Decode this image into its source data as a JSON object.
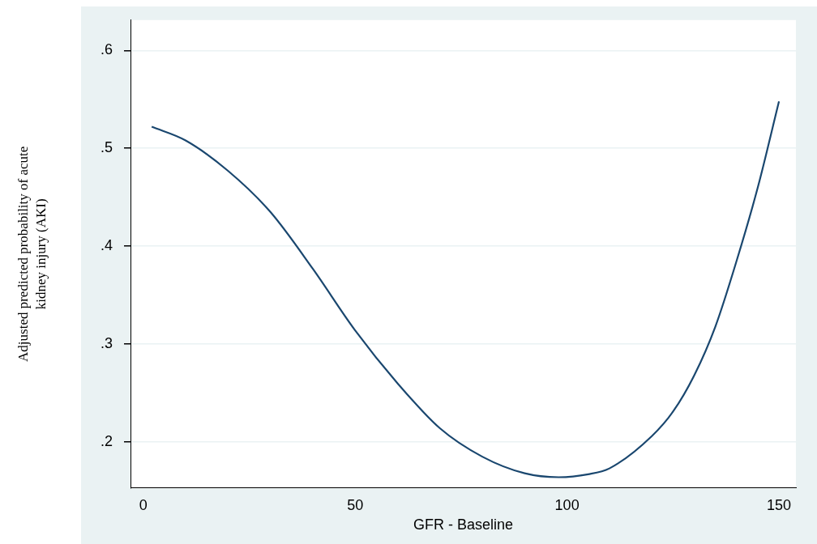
{
  "chart_data": {
    "type": "line",
    "xlabel": "GFR - Baseline",
    "ylabel": "Adjusted predicted probability of acute kidney injury (AKI)",
    "xlim": [
      -3,
      154
    ],
    "ylim": [
      0.153,
      0.631
    ],
    "xticks": [
      0,
      50,
      100,
      150
    ],
    "yticks": [
      {
        "value": 0.2,
        "label": ".2"
      },
      {
        "value": 0.3,
        "label": ".3"
      },
      {
        "value": 0.4,
        "label": ".4"
      },
      {
        "value": 0.5,
        "label": ".5"
      },
      {
        "value": 0.6,
        "label": ".6"
      }
    ],
    "grid": "y",
    "legend": false,
    "marker": "none",
    "line_style": "solid",
    "series": [
      {
        "color": "#1a476f",
        "x": [
          2,
          10,
          20,
          30,
          40,
          50,
          60,
          70,
          80,
          90,
          98,
          105,
          110,
          120,
          125,
          130,
          135,
          140,
          145,
          150
        ],
        "values": [
          0.522,
          0.508,
          0.477,
          0.435,
          0.377,
          0.314,
          0.26,
          0.214,
          0.185,
          0.168,
          0.164,
          0.167,
          0.173,
          0.206,
          0.231,
          0.268,
          0.318,
          0.385,
          0.46,
          0.548
        ]
      }
    ]
  }
}
